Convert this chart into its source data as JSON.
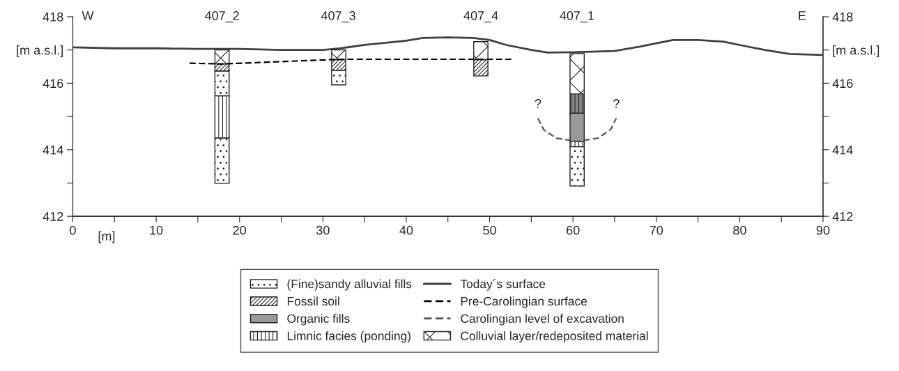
{
  "chart_data": {
    "type": "bar",
    "xlabel": "[m]",
    "xlim": [
      0,
      90
    ],
    "xticks": [
      0,
      {
        "value": 5,
        "label": null
      },
      10,
      {
        "value": 15,
        "label": null
      },
      20,
      {
        "value": 25,
        "label": null
      },
      30,
      {
        "value": 35,
        "label": null
      },
      40,
      {
        "value": 45,
        "label": null
      },
      50,
      {
        "value": 55,
        "label": null
      },
      60,
      {
        "value": 65,
        "label": null
      },
      70,
      {
        "value": 75,
        "label": null
      },
      80,
      {
        "value": 85,
        "label": null
      },
      90
    ],
    "ylim": [
      412,
      418
    ],
    "yticks": [
      412,
      {
        "value": 413,
        "label": null
      },
      414,
      {
        "value": 415,
        "label": null
      },
      416,
      {
        "value": 417,
        "label": "[m a.s.l.]"
      },
      418
    ],
    "y2lim": [
      412,
      418
    ],
    "y2ticks": [
      412,
      {
        "value": 413,
        "label": null
      },
      414,
      {
        "value": 415,
        "label": null
      },
      416,
      {
        "value": 417,
        "label": "[m a.s.l.]"
      },
      418
    ],
    "legend": "bottom",
    "grid": false,
    "series": [
      {
        "name": "(Fine)sandy alluvial fills",
        "color": "#222222",
        "x": [
          17.9,
          31.9
        ],
        "base": [
          415.62,
          415.95
        ],
        "values": [
          0.75,
          0.44
        ]
      },
      {
        "name": "Fossil soil",
        "color": "#222222",
        "x": [
          17.9,
          31.9,
          48.95
        ],
        "base": [
          416.37,
          416.39,
          416.22
        ],
        "values": [
          0.21,
          0.32,
          0.49
        ]
      },
      {
        "name": "Organic fills",
        "color": "#999999",
        "x": [
          60.5
        ],
        "base": [
          414.25
        ],
        "values": [
          0.85
        ]
      },
      {
        "name": "Limnic facies (ponding)",
        "color": "#222222",
        "x": [
          17.9,
          60.5
        ],
        "base": [
          414.35,
          414.09
        ],
        "values": [
          1.27,
          0.16
        ]
      },
      {
        "type": "line",
        "name": "Today´s surface",
        "color": "#404040",
        "line_style": "solid",
        "x": [
          0,
          5,
          10,
          15,
          20,
          25,
          30,
          32,
          35,
          40,
          42,
          45,
          48,
          50,
          52,
          55,
          57,
          60,
          65,
          68,
          70,
          72,
          75,
          78,
          80,
          83,
          86,
          90
        ],
        "values": [
          417.08,
          417.05,
          417.05,
          417.03,
          417.03,
          417.0,
          417.0,
          417.05,
          417.15,
          417.28,
          417.36,
          417.38,
          417.36,
          417.3,
          417.15,
          417.0,
          416.92,
          416.93,
          416.97,
          417.1,
          417.2,
          417.3,
          417.3,
          417.25,
          417.15,
          417.0,
          416.88,
          416.85
        ]
      },
      {
        "type": "line",
        "name": "Pre-Carolingian surface",
        "color": "#000000",
        "line_style": "dashed",
        "x": [
          14,
          18,
          32,
          52.6
        ],
        "values": [
          416.6,
          416.58,
          416.72,
          416.72
        ]
      },
      {
        "type": "line",
        "name": "Carolingian level of excavation",
        "color": "#555555",
        "line_style": "dashed",
        "x": [
          55.8,
          56.5,
          58,
          60.5,
          63,
          64.5,
          65.2
        ],
        "values": [
          414.95,
          414.6,
          414.35,
          414.25,
          414.35,
          414.6,
          414.95
        ]
      },
      {
        "name": "Colluvial layer/redeposited material",
        "color": "#222222",
        "x": [
          17.9,
          31.9,
          48.95,
          60.5
        ],
        "base": [
          416.58,
          416.71,
          416.71,
          415.68
        ],
        "values": [
          0.42,
          0.29,
          0.54,
          1.21
        ]
      },
      {
        "color": "#222222",
        "x": [
          17.9,
          60.5
        ],
        "base": [
          412.99,
          412.91
        ],
        "values": [
          1.36,
          1.18
        ]
      },
      {
        "color": "#222222",
        "x": [
          60.5
        ],
        "base": [
          415.1
        ],
        "values": [
          0.58
        ]
      }
    ],
    "annotations": [
      "W",
      "E",
      "407_2",
      "407_3",
      "407_4",
      "407_1",
      {
        "text": "?",
        "x": 55.8,
        "y": 414.95
      },
      {
        "text": "?",
        "x": 65.2,
        "y": 414.95
      }
    ]
  }
}
